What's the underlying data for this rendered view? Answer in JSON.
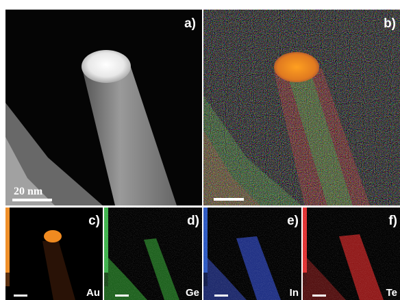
{
  "panels": [
    {
      "label": "a)"
    },
    {
      "label": "b)"
    },
    {
      "label": "c)",
      "element": "Au"
    },
    {
      "label": "d)",
      "element": "Ge"
    },
    {
      "label": "e)",
      "element": "In"
    },
    {
      "label": "f)",
      "element": "Te"
    }
  ],
  "scale_bar": "20 nm"
}
